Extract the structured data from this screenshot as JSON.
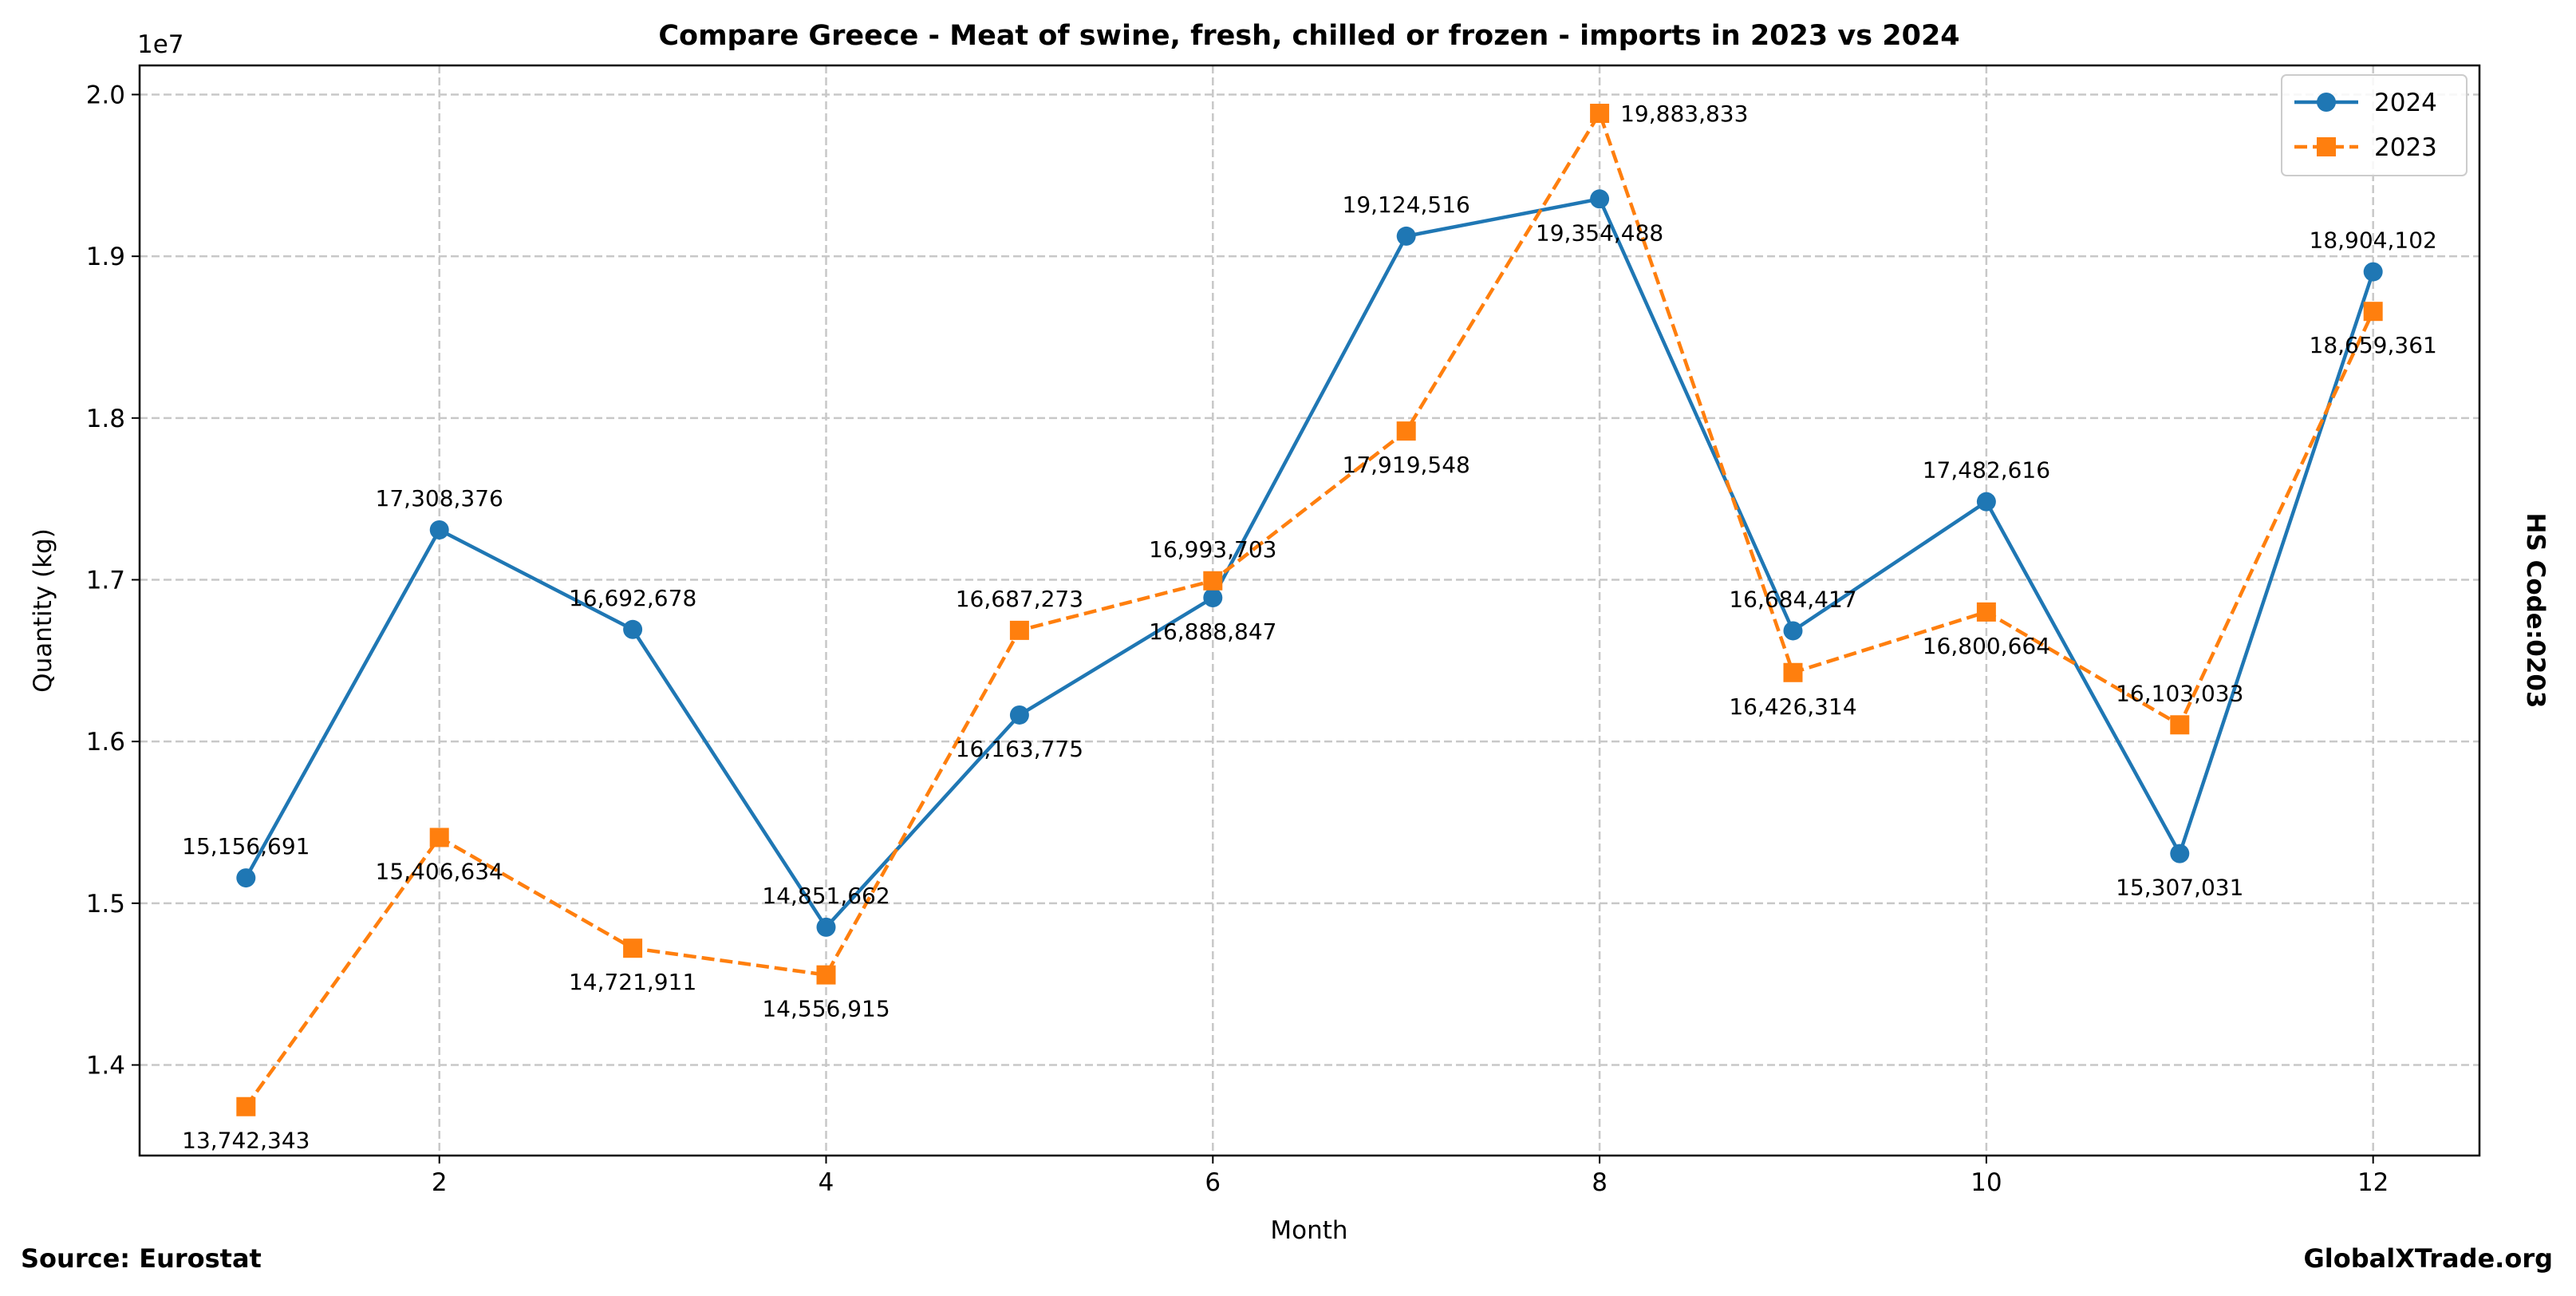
{
  "footer": {
    "source": "Source: Eurostat",
    "brand": "GlobalXTrade.org"
  },
  "side_label": "HS Code:0203",
  "chart_data": {
    "type": "line",
    "title": "Compare Greece - Meat of swine, fresh, chilled or frozen - imports in 2023 vs 2024",
    "xlabel": "Month",
    "ylabel": "Quantity (kg)",
    "y_offset_label": "1e7",
    "xlim": [
      0.45,
      12.55
    ],
    "ylim": [
      13440000,
      20180000
    ],
    "xticks": [
      2,
      4,
      6,
      8,
      10,
      12
    ],
    "yticks": [
      14000000,
      15000000,
      16000000,
      17000000,
      18000000,
      19000000,
      20000000
    ],
    "ytick_labels": [
      "1.4",
      "1.5",
      "1.6",
      "1.7",
      "1.8",
      "1.9",
      "2.0"
    ],
    "grid": true,
    "legend_placement": "top-right",
    "x": [
      1,
      2,
      3,
      4,
      5,
      6,
      7,
      8,
      9,
      10,
      11,
      12
    ],
    "series": [
      {
        "name": "2024",
        "color": "#1f77b4",
        "marker": "circle",
        "linestyle": "solid",
        "values": [
          15156691,
          17308376,
          16692678,
          14851662,
          16163775,
          16888847,
          19124516,
          19354488,
          16684417,
          17482616,
          15307031,
          18904102
        ]
      },
      {
        "name": "2023",
        "color": "#ff7f0e",
        "marker": "square",
        "linestyle": "dashed",
        "values": [
          13742343,
          15406634,
          14721911,
          14556915,
          16687273,
          16993703,
          17919548,
          19883833,
          16426314,
          16800664,
          16103033,
          18659361
        ]
      }
    ]
  }
}
